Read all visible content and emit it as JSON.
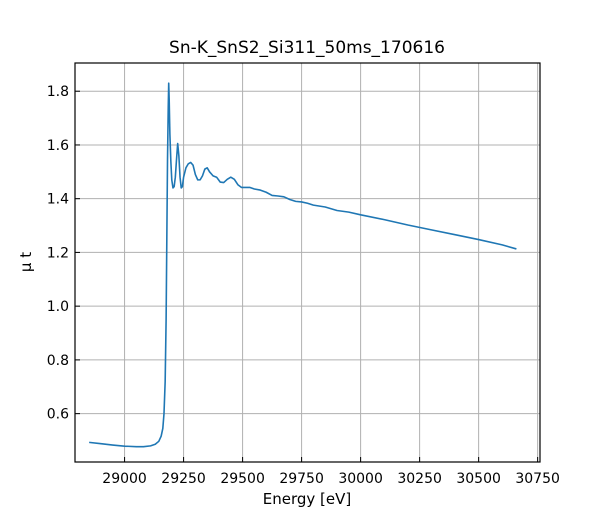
{
  "chart_data": {
    "type": "line",
    "title": "Sn-K_SnS2_Si311_50ms_170616",
    "xlabel": "Energy [eV]",
    "ylabel": "μ t",
    "xlim": [
      28790,
      30760
    ],
    "ylim": [
      0.42,
      1.905
    ],
    "xticks": [
      29000,
      29250,
      29500,
      29750,
      30000,
      30250,
      30500,
      30750
    ],
    "yticks": [
      0.6,
      0.8,
      1.0,
      1.2,
      1.4,
      1.6,
      1.8
    ],
    "grid": true,
    "colors": {
      "line": "#1f77b4"
    },
    "series": [
      {
        "points": [
          [
            28850,
            0.493
          ],
          [
            28900,
            0.488
          ],
          [
            28950,
            0.483
          ],
          [
            29000,
            0.479
          ],
          [
            29050,
            0.477
          ],
          [
            29080,
            0.477
          ],
          [
            29110,
            0.48
          ],
          [
            29130,
            0.486
          ],
          [
            29145,
            0.497
          ],
          [
            29155,
            0.516
          ],
          [
            29162,
            0.545
          ],
          [
            29167,
            0.6
          ],
          [
            29172,
            0.72
          ],
          [
            29176,
            0.95
          ],
          [
            29179,
            1.25
          ],
          [
            29182,
            1.55
          ],
          [
            29185,
            1.74
          ],
          [
            29187,
            1.83
          ],
          [
            29189,
            1.77
          ],
          [
            29192,
            1.64
          ],
          [
            29196,
            1.54
          ],
          [
            29200,
            1.47
          ],
          [
            29205,
            1.44
          ],
          [
            29210,
            1.445
          ],
          [
            29215,
            1.48
          ],
          [
            29220,
            1.545
          ],
          [
            29225,
            1.605
          ],
          [
            29230,
            1.56
          ],
          [
            29235,
            1.48
          ],
          [
            29240,
            1.44
          ],
          [
            29245,
            1.445
          ],
          [
            29250,
            1.48
          ],
          [
            29260,
            1.515
          ],
          [
            29270,
            1.53
          ],
          [
            29280,
            1.535
          ],
          [
            29290,
            1.525
          ],
          [
            29300,
            1.49
          ],
          [
            29310,
            1.47
          ],
          [
            29320,
            1.47
          ],
          [
            29330,
            1.485
          ],
          [
            29340,
            1.51
          ],
          [
            29350,
            1.515
          ],
          [
            29360,
            1.5
          ],
          [
            29375,
            1.485
          ],
          [
            29390,
            1.48
          ],
          [
            29405,
            1.462
          ],
          [
            29420,
            1.46
          ],
          [
            29435,
            1.472
          ],
          [
            29450,
            1.48
          ],
          [
            29465,
            1.472
          ],
          [
            29480,
            1.452
          ],
          [
            29495,
            1.442
          ],
          [
            29510,
            1.442
          ],
          [
            29530,
            1.442
          ],
          [
            29550,
            1.436
          ],
          [
            29575,
            1.432
          ],
          [
            29600,
            1.424
          ],
          [
            29625,
            1.412
          ],
          [
            29650,
            1.41
          ],
          [
            29675,
            1.407
          ],
          [
            29700,
            1.397
          ],
          [
            29725,
            1.39
          ],
          [
            29750,
            1.388
          ],
          [
            29775,
            1.383
          ],
          [
            29800,
            1.376
          ],
          [
            29850,
            1.369
          ],
          [
            29900,
            1.356
          ],
          [
            29950,
            1.35
          ],
          [
            30000,
            1.34
          ],
          [
            30100,
            1.322
          ],
          [
            30200,
            1.302
          ],
          [
            30300,
            1.284
          ],
          [
            30400,
            1.266
          ],
          [
            30500,
            1.248
          ],
          [
            30600,
            1.228
          ],
          [
            30660,
            1.213
          ]
        ]
      }
    ]
  }
}
